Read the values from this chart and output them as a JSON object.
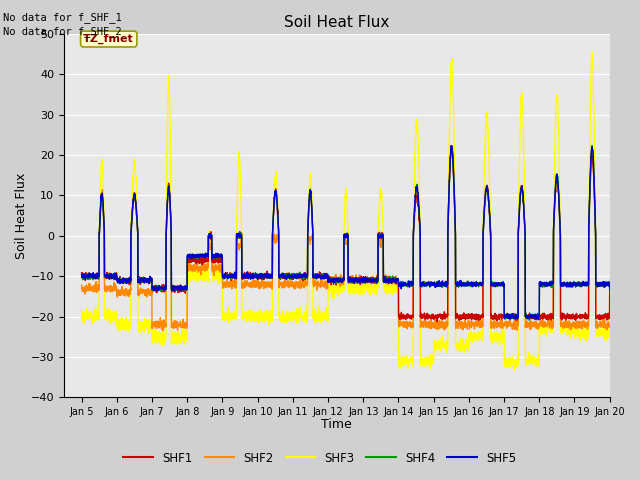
{
  "title": "Soil Heat Flux",
  "xlabel": "Time",
  "ylabel": "Soil Heat Flux",
  "xlim": [
    4.5,
    20.0
  ],
  "ylim": [
    -40,
    50
  ],
  "yticks": [
    -40,
    -30,
    -20,
    -10,
    0,
    10,
    20,
    30,
    40,
    50
  ],
  "xtick_labels": [
    "Jan 5",
    "Jan 6",
    "Jan 7",
    "Jan 8",
    "Jan 9",
    "Jan 10",
    "Jan 11",
    "Jan 12",
    "Jan 13",
    "Jan 14",
    "Jan 15",
    "Jan 16",
    "Jan 17",
    "Jan 18",
    "Jan 19",
    "Jan 20"
  ],
  "xtick_positions": [
    5,
    6,
    7,
    8,
    9,
    10,
    11,
    12,
    13,
    14,
    15,
    16,
    17,
    18,
    19,
    20
  ],
  "colors": {
    "SHF1": "#cc0000",
    "SHF2": "#ff8800",
    "SHF3": "#ffff00",
    "SHF4": "#009900",
    "SHF5": "#0000cc"
  },
  "no_data_text": [
    "No data for f_SHF_1",
    "No data for f_SHF_2"
  ],
  "tz_label": "TZ_fmet",
  "plot_bg_color": "#e8e8e8",
  "fig_bg_color": "#d0d0d0",
  "grid_color": "#ffffff",
  "linewidth": 1.0
}
